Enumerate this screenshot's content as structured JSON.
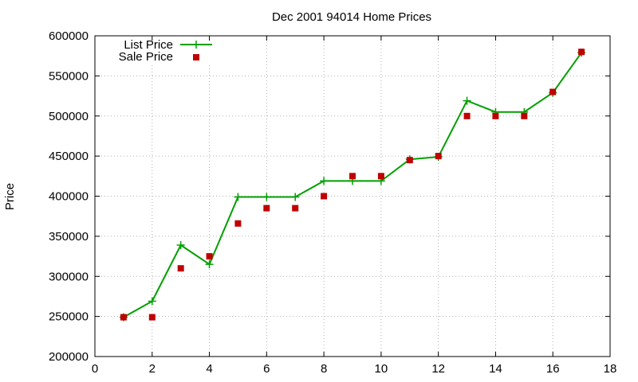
{
  "chart_data": {
    "type": "line",
    "title": "Dec 2001 94014 Home Prices",
    "xlabel": "",
    "ylabel": "Price",
    "xlim": [
      0,
      18
    ],
    "ylim": [
      200000,
      600000
    ],
    "xticks": [
      "0",
      "2",
      "4",
      "6",
      "8",
      "10",
      "12",
      "14",
      "16",
      "18"
    ],
    "yticks": [
      "200000",
      "250000",
      "300000",
      "350000",
      "400000",
      "450000",
      "500000",
      "550000",
      "600000"
    ],
    "grid": true,
    "legend_position": "top-left",
    "series": [
      {
        "name": "List Price",
        "style": "line-with-plus-markers",
        "color": "#00a000",
        "x": [
          1,
          2,
          3,
          4,
          5,
          6,
          7,
          8,
          9,
          10,
          11,
          12,
          13,
          14,
          15,
          16,
          17
        ],
        "y": [
          249000,
          269000,
          339000,
          315000,
          399000,
          399000,
          399000,
          419000,
          419000,
          419000,
          446000,
          449000,
          519000,
          505000,
          505000,
          529000,
          579000
        ]
      },
      {
        "name": "Sale Price",
        "style": "square-points",
        "color": "#c00000",
        "x": [
          1,
          2,
          3,
          4,
          5,
          6,
          7,
          8,
          9,
          10,
          11,
          12,
          13,
          14,
          15,
          16,
          17
        ],
        "y": [
          249000,
          249000,
          310000,
          325000,
          366000,
          385000,
          385000,
          400000,
          425000,
          425000,
          445000,
          450000,
          500000,
          500000,
          500000,
          530000,
          580000
        ]
      }
    ]
  }
}
